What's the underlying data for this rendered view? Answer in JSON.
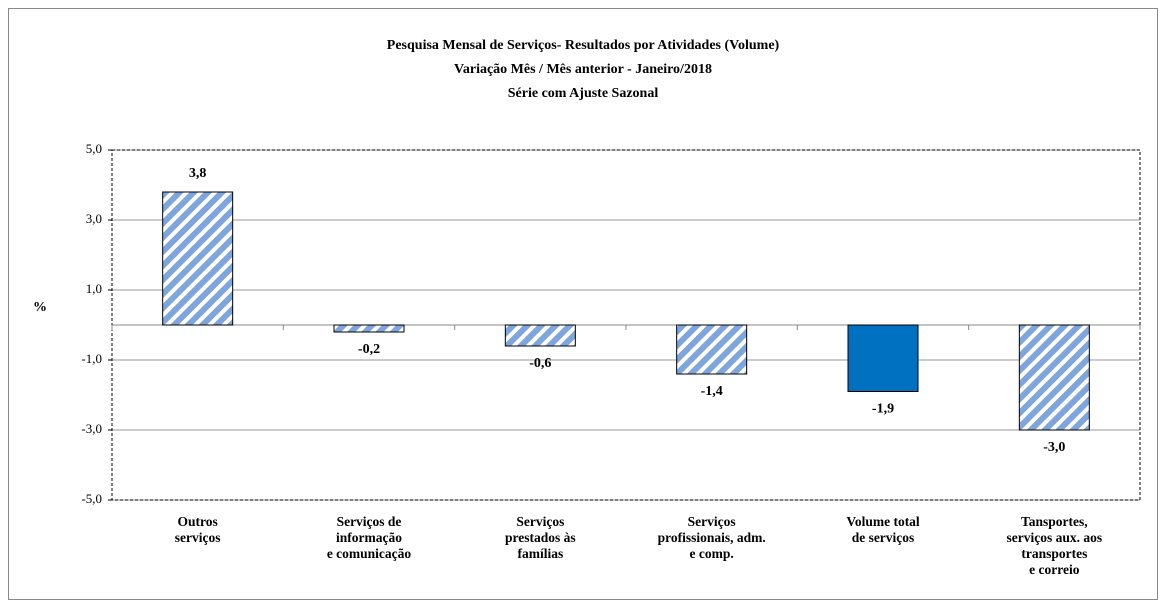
{
  "chart_data": {
    "type": "bar",
    "title": [
      "Pesquisa Mensal de Serviços- Resultados por Atividades (Volume)",
      "Variação Mês / Mês anterior - Janeiro/2018",
      "Série com Ajuste Sazonal"
    ],
    "ylabel": "%",
    "categories": [
      "Outros\nserviços",
      "Serviços de\ninformação\ne comunicação",
      "Serviços\nprestados às\nfamílias",
      "Serviços\nprofissionais, adm.\ne comp.",
      "Volume total\nde serviços",
      "Tansportes,\nserviços aux. aos\ntransportes\ne correio"
    ],
    "values": [
      3.8,
      -0.2,
      -0.6,
      -1.4,
      -1.9,
      -3.0
    ],
    "value_labels": [
      "3,8",
      "-0,2",
      "-0,6",
      "-1,4",
      "-1,9",
      "-3,0"
    ],
    "colors": [
      "#8db4e2",
      "#8db4e2",
      "#8db4e2",
      "#8db4e2",
      "#0070c0",
      "#8db4e2"
    ],
    "hatched": [
      true,
      true,
      true,
      true,
      false,
      true
    ],
    "ylim": [
      -5,
      5
    ],
    "yticks": [
      {
        "value": -5,
        "label": "-5,0"
      },
      {
        "value": -3,
        "label": "-3,0"
      },
      {
        "value": -1,
        "label": "-1,0"
      },
      {
        "value": 1,
        "label": "1,0"
      },
      {
        "value": 3,
        "label": "3,0"
      },
      {
        "value": 5,
        "label": "5,0"
      }
    ],
    "grid": true
  }
}
